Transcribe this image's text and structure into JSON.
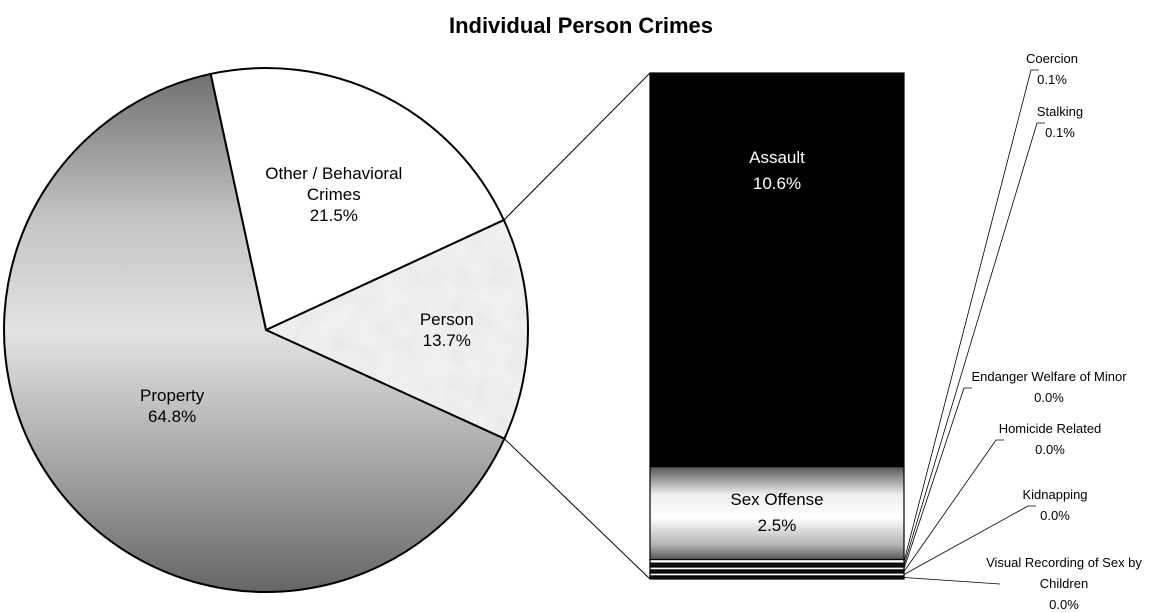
{
  "chart_data": {
    "type": "pie",
    "subtype": "pie-of-bar",
    "title": "Individual Person Crimes",
    "pie": {
      "slices": [
        {
          "label": "Other / Behavioral Crimes",
          "value": 21.5,
          "value_label": "21.5%",
          "fill": "#ffffff"
        },
        {
          "label": "Person",
          "value": 13.7,
          "value_label": "13.7%",
          "fill": "marble-texture"
        },
        {
          "label": "Property",
          "value": 64.8,
          "value_label": "64.8%",
          "fill": "gray-gradient"
        }
      ]
    },
    "bar": {
      "segments": [
        {
          "label": "Assault",
          "value": 10.6,
          "value_label": "10.6%",
          "fill": "#000000",
          "text_color": "#ffffff"
        },
        {
          "label": "Sex Offense",
          "value": 2.5,
          "value_label": "2.5%",
          "fill": "gray-gradient",
          "text_color": "#000000"
        },
        {
          "label": "Coercion",
          "value": 0.1,
          "value_label": "0.1%"
        },
        {
          "label": "Stalking",
          "value": 0.1,
          "value_label": "0.1%"
        },
        {
          "label": "Endanger Welfare of Minor",
          "value": 0.0,
          "value_label": "0.0%"
        },
        {
          "label": "Homicide Related",
          "value": 0.0,
          "value_label": "0.0%"
        },
        {
          "label": "Kidnapping",
          "value": 0.0,
          "value_label": "0.0%"
        },
        {
          "label": "Visual Recording of Sex by Children",
          "value": 0.0,
          "value_label": "0.0%"
        }
      ]
    },
    "legend": "none",
    "grid": false
  }
}
